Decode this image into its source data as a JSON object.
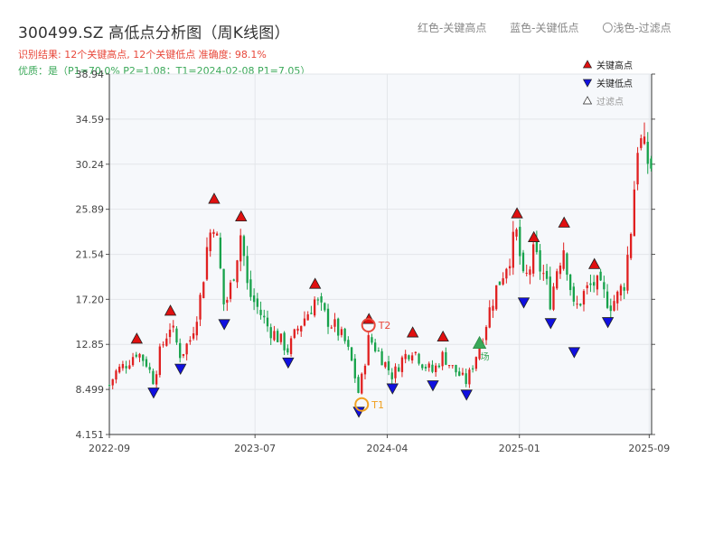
{
  "title": "300499.SZ 高低点分析图（周K线图）",
  "subtitle_result": "识别结果: 12个关键高点, 12个关键低点  准确度: 98.1%",
  "subtitle_quality": "优质：是（P1=70.0%  P2=1.08；T1=2024-02-08 P1=7.05）",
  "top_legend": {
    "red": "红色-关键高点",
    "blue": "蓝色-关键低点",
    "hollow": "〇浅色-过滤点"
  },
  "colors": {
    "up": "#e02020",
    "down": "#17a24b",
    "high_marker": "#e01010",
    "low_marker": "#1010e0",
    "t1_ring": "#f0a020",
    "t2_ring": "#e8483b",
    "plot_bg": "#f6f8fb",
    "grid": "#e3e6ea"
  },
  "chart_data": {
    "type": "candlestick",
    "xlabel": "",
    "ylabel": "",
    "ylim": [
      4.151,
      38.94
    ],
    "y_ticks": [
      "4.151",
      "8.499",
      "12.85",
      "17.20",
      "21.54",
      "25.89",
      "30.24",
      "34.59",
      "38.94"
    ],
    "x_ticks": [
      "2022-09",
      "2023-07",
      "2024-04",
      "2025-01",
      "2025-09"
    ],
    "x_range": [
      "2022-09-01",
      "2025-10-03"
    ],
    "legend_placement": "top-right",
    "legend": [
      "关键高点",
      "关键低点",
      "过滤点"
    ],
    "annotations": [
      {
        "label": "T1",
        "date": "2024-02-08",
        "y": 7.05
      },
      {
        "label": "T2",
        "date": "2024-02-22",
        "y": 14.7
      },
      {
        "label": "场",
        "date": "2024-10-10",
        "y": 13.0
      }
    ],
    "key_highs": [
      {
        "date": "2022-10-28",
        "y": 12.7
      },
      {
        "date": "2023-01-06",
        "y": 15.4
      },
      {
        "date": "2023-04-07",
        "y": 26.2
      },
      {
        "date": "2023-06-02",
        "y": 24.5
      },
      {
        "date": "2023-11-03",
        "y": 18.0
      },
      {
        "date": "2024-02-23",
        "y": 14.6
      },
      {
        "date": "2024-05-24",
        "y": 13.3
      },
      {
        "date": "2024-07-26",
        "y": 12.9
      },
      {
        "date": "2024-12-27",
        "y": 24.8
      },
      {
        "date": "2025-01-31",
        "y": 22.5
      },
      {
        "date": "2025-04-04",
        "y": 23.9
      },
      {
        "date": "2025-06-06",
        "y": 19.9
      }
    ],
    "key_lows": [
      {
        "date": "2022-12-02",
        "y": 8.9
      },
      {
        "date": "2023-01-27",
        "y": 11.2
      },
      {
        "date": "2023-04-28",
        "y": 15.5
      },
      {
        "date": "2023-09-08",
        "y": 11.8
      },
      {
        "date": "2024-02-02",
        "y": 7.05
      },
      {
        "date": "2024-04-12",
        "y": 9.3
      },
      {
        "date": "2024-07-05",
        "y": 9.6
      },
      {
        "date": "2024-09-13",
        "y": 8.7
      },
      {
        "date": "2025-01-10",
        "y": 17.6
      },
      {
        "date": "2025-03-07",
        "y": 15.6
      },
      {
        "date": "2025-04-25",
        "y": 12.8
      },
      {
        "date": "2025-07-04",
        "y": 15.7
      }
    ],
    "filtered_points": [
      {
        "date": "2024-10-10",
        "y": 12.9
      }
    ],
    "close_path": [
      [
        "2022-09-02",
        9.0
      ],
      [
        "2022-09-16",
        10.3
      ],
      [
        "2022-10-07",
        11.0
      ],
      [
        "2022-10-28",
        12.2
      ],
      [
        "2022-11-18",
        11.0
      ],
      [
        "2022-12-02",
        9.3
      ],
      [
        "2022-12-16",
        12.2
      ],
      [
        "2023-01-06",
        14.8
      ],
      [
        "2023-01-27",
        11.8
      ],
      [
        "2023-02-17",
        13.4
      ],
      [
        "2023-03-10",
        17.5
      ],
      [
        "2023-03-24",
        22.5
      ],
      [
        "2023-04-07",
        25.2
      ],
      [
        "2023-04-21",
        19.5
      ],
      [
        "2023-04-28",
        16.3
      ],
      [
        "2023-05-12",
        18.5
      ],
      [
        "2023-06-02",
        23.8
      ],
      [
        "2023-06-16",
        18.0
      ],
      [
        "2023-07-07",
        16.3
      ],
      [
        "2023-07-28",
        14.5
      ],
      [
        "2023-08-18",
        13.5
      ],
      [
        "2023-09-08",
        12.3
      ],
      [
        "2023-09-29",
        14.5
      ],
      [
        "2023-10-20",
        16.0
      ],
      [
        "2023-11-03",
        17.2
      ],
      [
        "2023-11-24",
        15.5
      ],
      [
        "2023-12-15",
        14.5
      ],
      [
        "2024-01-05",
        13.0
      ],
      [
        "2024-01-19",
        11.0
      ],
      [
        "2024-02-02",
        8.0
      ],
      [
        "2024-02-23",
        13.5
      ],
      [
        "2024-03-15",
        12.0
      ],
      [
        "2024-04-12",
        9.8
      ],
      [
        "2024-05-03",
        11.5
      ],
      [
        "2024-05-24",
        12.5
      ],
      [
        "2024-06-14",
        11.0
      ],
      [
        "2024-07-05",
        10.2
      ],
      [
        "2024-07-26",
        11.8
      ],
      [
        "2024-08-16",
        10.5
      ],
      [
        "2024-09-13",
        9.2
      ],
      [
        "2024-09-27",
        11.0
      ],
      [
        "2024-10-18",
        14.0
      ],
      [
        "2024-11-08",
        17.5
      ],
      [
        "2024-11-29",
        20.0
      ],
      [
        "2024-12-27",
        23.5
      ],
      [
        "2025-01-10",
        18.5
      ],
      [
        "2025-01-31",
        21.5
      ],
      [
        "2025-02-21",
        19.5
      ],
      [
        "2025-03-07",
        17.0
      ],
      [
        "2025-03-21",
        20.5
      ],
      [
        "2025-04-04",
        22.5
      ],
      [
        "2025-04-25",
        16.0
      ],
      [
        "2025-05-16",
        17.8
      ],
      [
        "2025-06-06",
        18.8
      ],
      [
        "2025-06-27",
        17.5
      ],
      [
        "2025-07-11",
        16.8
      ],
      [
        "2025-07-25",
        17.5
      ],
      [
        "2025-08-08",
        19.0
      ],
      [
        "2025-08-22",
        24.5
      ],
      [
        "2025-09-05",
        33.0
      ],
      [
        "2025-09-19",
        31.0
      ],
      [
        "2025-10-03",
        30.0
      ]
    ]
  }
}
